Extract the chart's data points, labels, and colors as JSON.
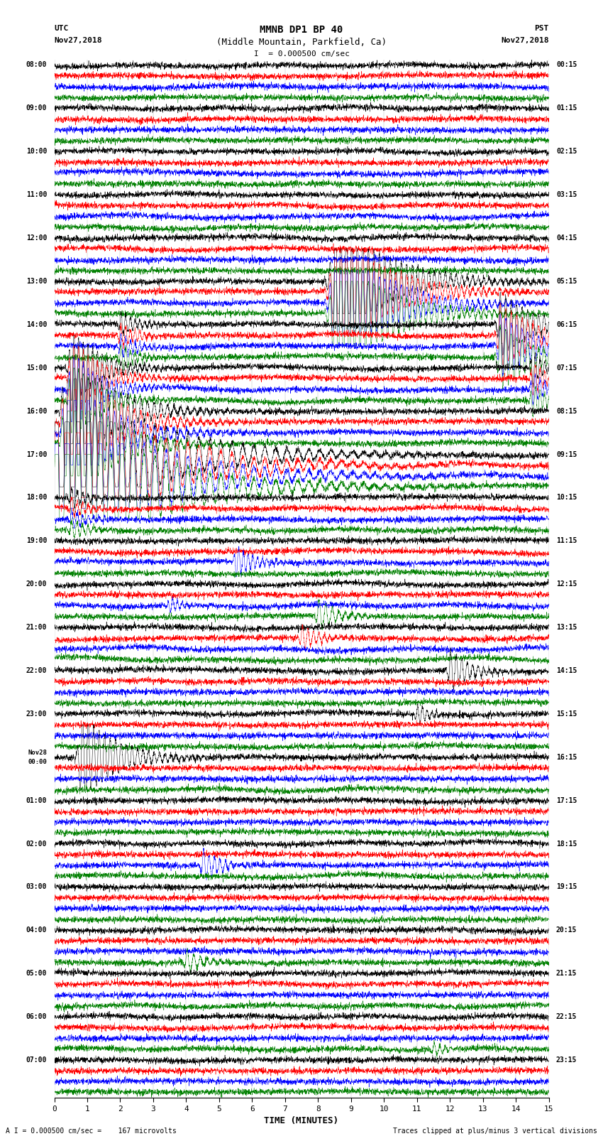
{
  "title_line1": "MMNB DP1 BP 40",
  "title_line2": "(Middle Mountain, Parkfield, Ca)",
  "scale_text": "I  = 0.000500 cm/sec",
  "utc_label": "UTC",
  "utc_date": "Nov27,2018",
  "pst_label": "PST",
  "pst_date": "Nov27,2018",
  "xlabel": "TIME (MINUTES)",
  "footer_left": "A I = 0.000500 cm/sec =    167 microvolts",
  "footer_right": "Traces clipped at plus/minus 3 vertical divisions",
  "left_times": [
    "08:00",
    "09:00",
    "10:00",
    "11:00",
    "12:00",
    "13:00",
    "14:00",
    "15:00",
    "16:00",
    "17:00",
    "18:00",
    "19:00",
    "20:00",
    "21:00",
    "22:00",
    "23:00",
    "Nov28\n00:00",
    "01:00",
    "02:00",
    "03:00",
    "04:00",
    "05:00",
    "06:00",
    "07:00"
  ],
  "right_times": [
    "00:15",
    "01:15",
    "02:15",
    "03:15",
    "04:15",
    "05:15",
    "06:15",
    "07:15",
    "08:15",
    "09:15",
    "10:15",
    "11:15",
    "12:15",
    "13:15",
    "14:15",
    "15:15",
    "16:15",
    "17:15",
    "18:15",
    "19:15",
    "20:15",
    "21:15",
    "22:15",
    "23:15"
  ],
  "num_rows": 24,
  "traces_per_row": 4,
  "colors": [
    "black",
    "red",
    "blue",
    "green"
  ],
  "background": "white",
  "fig_width": 8.5,
  "fig_height": 16.13,
  "dpi": 100,
  "xmin": 0,
  "xmax": 15
}
